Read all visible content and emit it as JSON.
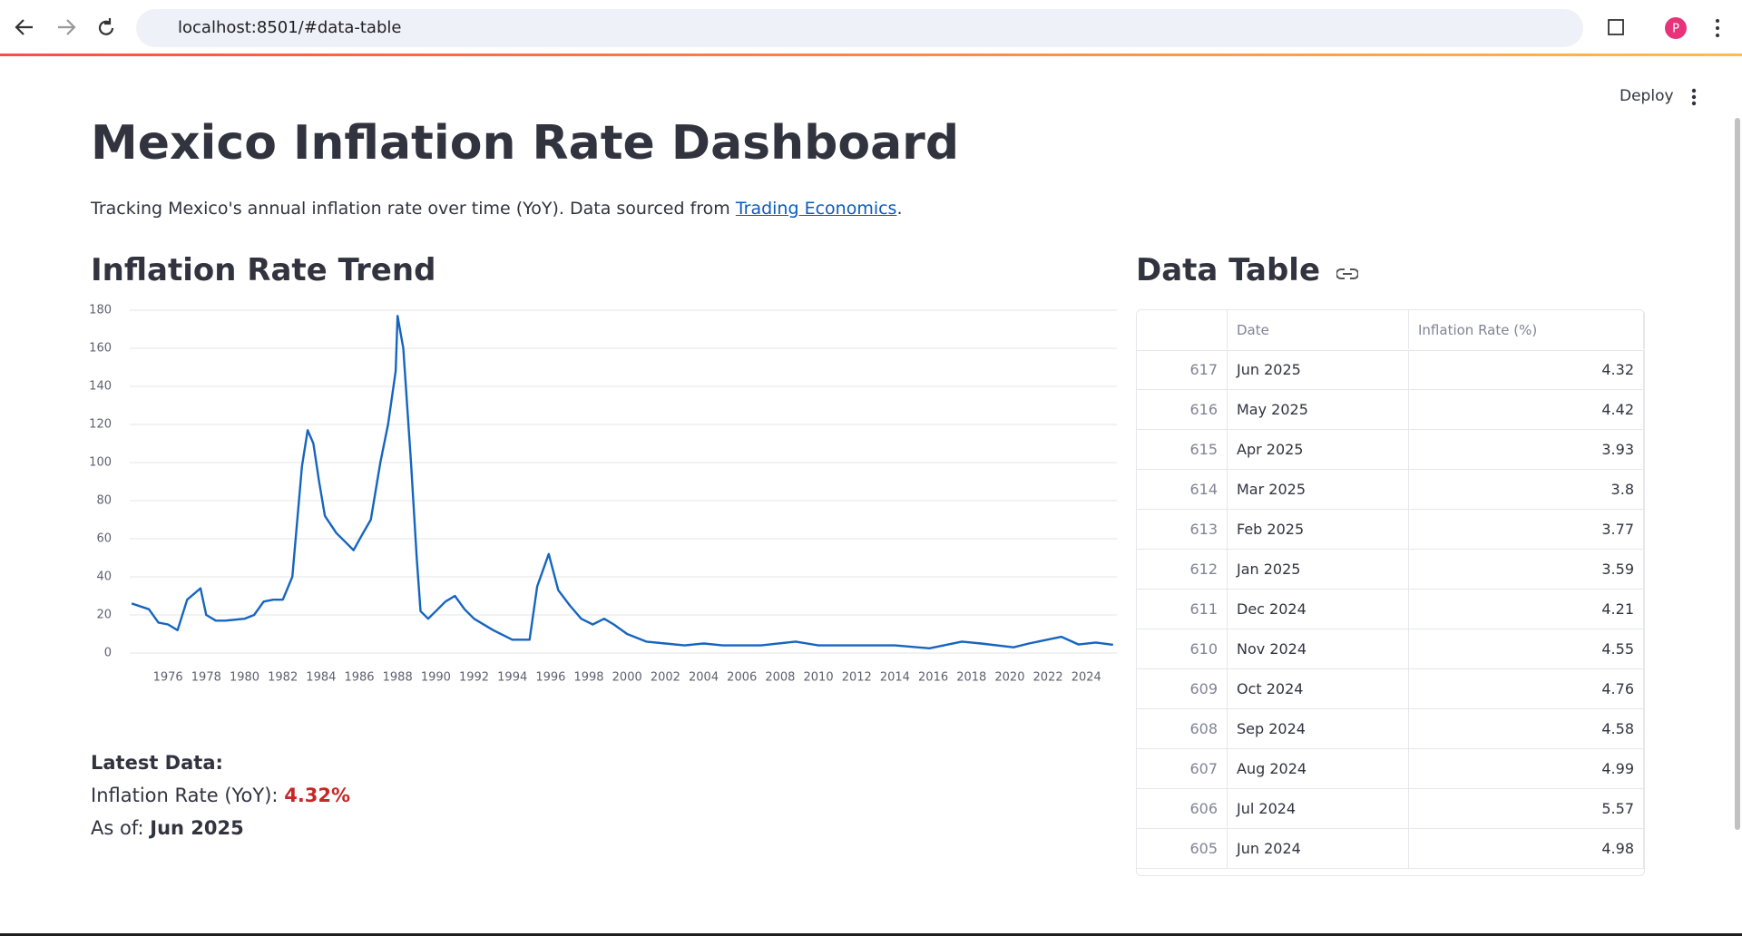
{
  "browser": {
    "url": "localhost:8501/#data-table",
    "avatar": "P"
  },
  "header": {
    "deploy": "Deploy"
  },
  "title": "Mexico Inflation Rate Dashboard",
  "description": {
    "text": "Tracking Mexico's annual inflation rate over time (YoY). Data sourced from ",
    "link": "Trading Economics",
    "end": "."
  },
  "chart_data": {
    "type": "line",
    "title": "Inflation Rate Trend",
    "x": [
      1974.1,
      1975,
      1975.5,
      1976,
      1976.5,
      1977,
      1977.7,
      1978,
      1978.5,
      1979,
      1980,
      1980.5,
      1981,
      1981.5,
      1982,
      1982.5,
      1983,
      1983.3,
      1983.6,
      1983.9,
      1984.2,
      1984.8,
      1985.3,
      1985.7,
      1986.2,
      1986.6,
      1987.1,
      1987.5,
      1987.9,
      1988,
      1988.3,
      1988.7,
      1989,
      1989.2,
      1989.6,
      1990,
      1990.5,
      1991,
      1991.5,
      1992,
      1993,
      1994,
      1994.9,
      1995.3,
      1995.9,
      1996.4,
      1997,
      1997.6,
      1998.2,
      1998.8,
      1999.3,
      2000,
      2001,
      2002,
      2003,
      2004,
      2005,
      2006,
      2007,
      2008.8,
      2010,
      2012,
      2014,
      2015.8,
      2017.5,
      2018.5,
      2020.2,
      2021,
      2022.7,
      2023.6,
      2024.5,
      2025.4
    ],
    "series": [
      {
        "name": "Inflation Rate (%)",
        "color": "#1565c0",
        "values": [
          26,
          23,
          16,
          15,
          12,
          28,
          34,
          20,
          17,
          17,
          18,
          20,
          27,
          28,
          28,
          40,
          98,
          117,
          110,
          90,
          72,
          63,
          58,
          54,
          63,
          70,
          100,
          120,
          148,
          177,
          160,
          100,
          50,
          22,
          18,
          22,
          27,
          30,
          23,
          18,
          12,
          7,
          7,
          35,
          52,
          33,
          25,
          18,
          15,
          18,
          15,
          10,
          6,
          5,
          4,
          5,
          4,
          4,
          4,
          6,
          4,
          4,
          4,
          2.5,
          6,
          5,
          3,
          5,
          8.5,
          4.5,
          5.5,
          4.32
        ]
      }
    ],
    "xlim": [
      1974,
      2025.6
    ],
    "xticks": [
      1976,
      1978,
      1980,
      1982,
      1984,
      1986,
      1988,
      1990,
      1992,
      1994,
      1996,
      1998,
      2000,
      2002,
      2004,
      2006,
      2008,
      2010,
      2012,
      2014,
      2016,
      2018,
      2020,
      2022,
      2024
    ],
    "ylim": [
      0,
      180
    ],
    "yticks": [
      0,
      20,
      40,
      60,
      80,
      100,
      120,
      140,
      160,
      180
    ],
    "grid": true
  },
  "table": {
    "title": "Data Table",
    "columns": [
      "Date",
      "Inflation Rate (%)"
    ],
    "rows": [
      [
        617,
        "Jun 2025",
        4.32
      ],
      [
        616,
        "May 2025",
        4.42
      ],
      [
        615,
        "Apr 2025",
        3.93
      ],
      [
        614,
        "Mar 2025",
        3.8
      ],
      [
        613,
        "Feb 2025",
        3.77
      ],
      [
        612,
        "Jan 2025",
        3.59
      ],
      [
        611,
        "Dec 2024",
        4.21
      ],
      [
        610,
        "Nov 2024",
        4.55
      ],
      [
        609,
        "Oct 2024",
        4.76
      ],
      [
        608,
        "Sep 2024",
        4.58
      ],
      [
        607,
        "Aug 2024",
        4.99
      ],
      [
        606,
        "Jul 2024",
        5.57
      ],
      [
        605,
        "Jun 2024",
        4.98
      ]
    ]
  },
  "latest": {
    "heading": "Latest Data:",
    "rate_label": "Inflation Rate (YoY):",
    "rate": "4.32%",
    "date_label": "As of:",
    "date": "Jun 2025"
  }
}
